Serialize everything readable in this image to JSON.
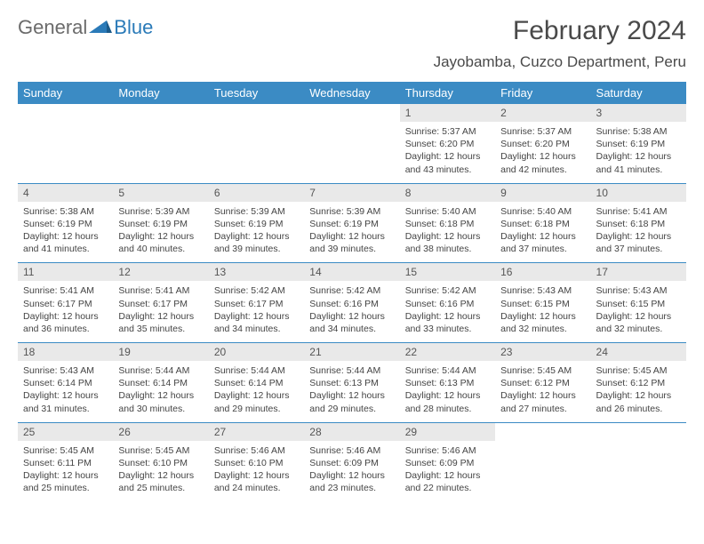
{
  "logo": {
    "part1": "General",
    "part2": "Blue"
  },
  "title": "February 2024",
  "location": "Jayobamba, Cuzco Department, Peru",
  "colors": {
    "header_bg": "#3b8bc4",
    "header_text": "#ffffff",
    "daynum_bg": "#e9e9e9",
    "row_border": "#3b8bc4",
    "logo_gray": "#6b6b6b",
    "logo_blue": "#2a7ab8"
  },
  "day_names": [
    "Sunday",
    "Monday",
    "Tuesday",
    "Wednesday",
    "Thursday",
    "Friday",
    "Saturday"
  ],
  "weeks": [
    [
      null,
      null,
      null,
      null,
      {
        "n": "1",
        "sunrise": "5:37 AM",
        "sunset": "6:20 PM",
        "daylight": "12 hours and 43 minutes."
      },
      {
        "n": "2",
        "sunrise": "5:37 AM",
        "sunset": "6:20 PM",
        "daylight": "12 hours and 42 minutes."
      },
      {
        "n": "3",
        "sunrise": "5:38 AM",
        "sunset": "6:19 PM",
        "daylight": "12 hours and 41 minutes."
      }
    ],
    [
      {
        "n": "4",
        "sunrise": "5:38 AM",
        "sunset": "6:19 PM",
        "daylight": "12 hours and 41 minutes."
      },
      {
        "n": "5",
        "sunrise": "5:39 AM",
        "sunset": "6:19 PM",
        "daylight": "12 hours and 40 minutes."
      },
      {
        "n": "6",
        "sunrise": "5:39 AM",
        "sunset": "6:19 PM",
        "daylight": "12 hours and 39 minutes."
      },
      {
        "n": "7",
        "sunrise": "5:39 AM",
        "sunset": "6:19 PM",
        "daylight": "12 hours and 39 minutes."
      },
      {
        "n": "8",
        "sunrise": "5:40 AM",
        "sunset": "6:18 PM",
        "daylight": "12 hours and 38 minutes."
      },
      {
        "n": "9",
        "sunrise": "5:40 AM",
        "sunset": "6:18 PM",
        "daylight": "12 hours and 37 minutes."
      },
      {
        "n": "10",
        "sunrise": "5:41 AM",
        "sunset": "6:18 PM",
        "daylight": "12 hours and 37 minutes."
      }
    ],
    [
      {
        "n": "11",
        "sunrise": "5:41 AM",
        "sunset": "6:17 PM",
        "daylight": "12 hours and 36 minutes."
      },
      {
        "n": "12",
        "sunrise": "5:41 AM",
        "sunset": "6:17 PM",
        "daylight": "12 hours and 35 minutes."
      },
      {
        "n": "13",
        "sunrise": "5:42 AM",
        "sunset": "6:17 PM",
        "daylight": "12 hours and 34 minutes."
      },
      {
        "n": "14",
        "sunrise": "5:42 AM",
        "sunset": "6:16 PM",
        "daylight": "12 hours and 34 minutes."
      },
      {
        "n": "15",
        "sunrise": "5:42 AM",
        "sunset": "6:16 PM",
        "daylight": "12 hours and 33 minutes."
      },
      {
        "n": "16",
        "sunrise": "5:43 AM",
        "sunset": "6:15 PM",
        "daylight": "12 hours and 32 minutes."
      },
      {
        "n": "17",
        "sunrise": "5:43 AM",
        "sunset": "6:15 PM",
        "daylight": "12 hours and 32 minutes."
      }
    ],
    [
      {
        "n": "18",
        "sunrise": "5:43 AM",
        "sunset": "6:14 PM",
        "daylight": "12 hours and 31 minutes."
      },
      {
        "n": "19",
        "sunrise": "5:44 AM",
        "sunset": "6:14 PM",
        "daylight": "12 hours and 30 minutes."
      },
      {
        "n": "20",
        "sunrise": "5:44 AM",
        "sunset": "6:14 PM",
        "daylight": "12 hours and 29 minutes."
      },
      {
        "n": "21",
        "sunrise": "5:44 AM",
        "sunset": "6:13 PM",
        "daylight": "12 hours and 29 minutes."
      },
      {
        "n": "22",
        "sunrise": "5:44 AM",
        "sunset": "6:13 PM",
        "daylight": "12 hours and 28 minutes."
      },
      {
        "n": "23",
        "sunrise": "5:45 AM",
        "sunset": "6:12 PM",
        "daylight": "12 hours and 27 minutes."
      },
      {
        "n": "24",
        "sunrise": "5:45 AM",
        "sunset": "6:12 PM",
        "daylight": "12 hours and 26 minutes."
      }
    ],
    [
      {
        "n": "25",
        "sunrise": "5:45 AM",
        "sunset": "6:11 PM",
        "daylight": "12 hours and 25 minutes."
      },
      {
        "n": "26",
        "sunrise": "5:45 AM",
        "sunset": "6:10 PM",
        "daylight": "12 hours and 25 minutes."
      },
      {
        "n": "27",
        "sunrise": "5:46 AM",
        "sunset": "6:10 PM",
        "daylight": "12 hours and 24 minutes."
      },
      {
        "n": "28",
        "sunrise": "5:46 AM",
        "sunset": "6:09 PM",
        "daylight": "12 hours and 23 minutes."
      },
      {
        "n": "29",
        "sunrise": "5:46 AM",
        "sunset": "6:09 PM",
        "daylight": "12 hours and 22 minutes."
      },
      null,
      null
    ]
  ],
  "labels": {
    "sunrise": "Sunrise: ",
    "sunset": "Sunset: ",
    "daylight": "Daylight: "
  }
}
